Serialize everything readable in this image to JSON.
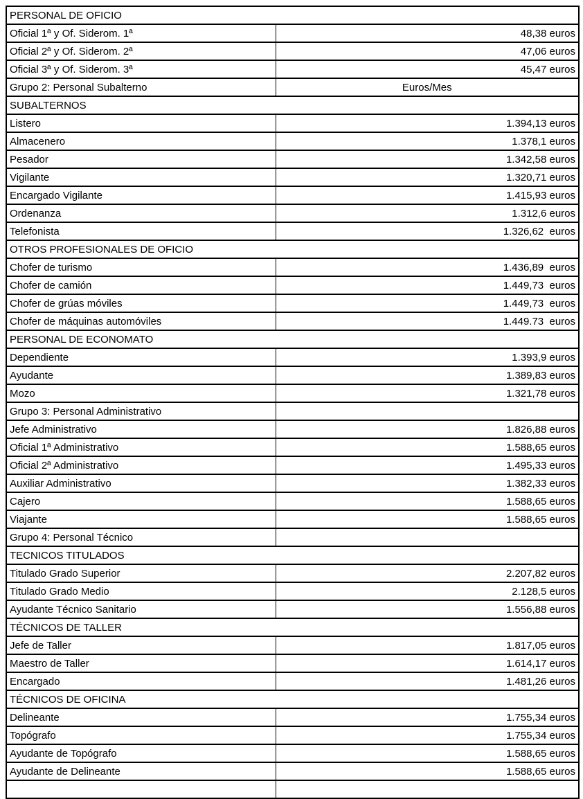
{
  "document": {
    "table": {
      "amount_column_header": "Euros/Mes",
      "currency_word": "euros",
      "rows": [
        {
          "type": "section",
          "label": "PERSONAL DE OFICIO"
        },
        {
          "type": "item",
          "label": "Oficial 1ª y Of. Siderom. 1ª",
          "value": "48,38 euros"
        },
        {
          "type": "item",
          "label": "Oficial 2ª y Of. Siderom. 2ª",
          "value": "47,06 euros"
        },
        {
          "type": "item",
          "label": "Oficial 3ª y Of. Siderom. 3ª",
          "value": "45,47 euros"
        },
        {
          "type": "group",
          "label": "Grupo 2: Personal Subalterno",
          "value": "Euros/Mes"
        },
        {
          "type": "section",
          "label": "SUBALTERNOS"
        },
        {
          "type": "item",
          "label": "Listero",
          "value": "1.394,13 euros"
        },
        {
          "type": "item",
          "label": "Almacenero",
          "value": "1.378,1 euros"
        },
        {
          "type": "item",
          "label": "Pesador",
          "value": "1.342,58 euros"
        },
        {
          "type": "item",
          "label": "Vigilante",
          "value": "1.320,71 euros"
        },
        {
          "type": "item",
          "label": "Encargado Vigilante",
          "value": "1.415,93 euros"
        },
        {
          "type": "item",
          "label": "Ordenanza",
          "value": "1.312,6 euros"
        },
        {
          "type": "item",
          "label": "Telefonista",
          "value": "1.326,62  euros"
        },
        {
          "type": "section",
          "label": "OTROS PROFESIONALES DE OFICIO"
        },
        {
          "type": "item",
          "label": "Chofer de turismo",
          "value": "1.436,89  euros"
        },
        {
          "type": "item",
          "label": "Chofer de camión",
          "value": "1.449,73  euros"
        },
        {
          "type": "item",
          "label": "Chofer de grúas móviles",
          "value": "1.449,73  euros"
        },
        {
          "type": "item",
          "label": "Chofer de máquinas automóviles",
          "value": "1.449.73  euros"
        },
        {
          "type": "section",
          "label": "PERSONAL DE ECONOMATO"
        },
        {
          "type": "item",
          "label": "Dependiente",
          "value": "1.393,9 euros"
        },
        {
          "type": "item",
          "label": "Ayudante",
          "value": "1.389,83 euros"
        },
        {
          "type": "item",
          "label": "Mozo",
          "value": "1.321,78 euros"
        },
        {
          "type": "group",
          "label": "Grupo 3: Personal Administrativo",
          "value": ""
        },
        {
          "type": "item",
          "label": "Jefe Administrativo",
          "value": "1.826,88 euros"
        },
        {
          "type": "item",
          "label": "Oficial 1ª Administrativo",
          "value": "1.588,65 euros"
        },
        {
          "type": "item",
          "label": "Oficial 2ª Administrativo",
          "value": "1.495,33 euros"
        },
        {
          "type": "item",
          "label": "Auxiliar Administrativo",
          "value": "1.382,33 euros"
        },
        {
          "type": "item",
          "label": "Cajero",
          "value": "1.588,65 euros"
        },
        {
          "type": "item",
          "label": "Viajante",
          "value": "1.588,65 euros"
        },
        {
          "type": "group",
          "label": "Grupo 4: Personal Técnico",
          "value": ""
        },
        {
          "type": "section",
          "label": "TECNICOS TITULADOS"
        },
        {
          "type": "item",
          "label": "Titulado Grado Superior",
          "value": "2.207,82 euros"
        },
        {
          "type": "item",
          "label": "Titulado Grado Medio",
          "value": "2.128,5 euros"
        },
        {
          "type": "item",
          "label": "Ayudante Técnico Sanitario",
          "value": "1.556,88 euros"
        },
        {
          "type": "section",
          "label": "TÉCNICOS DE TALLER"
        },
        {
          "type": "item",
          "label": "Jefe de Taller",
          "value": "1.817,05 euros"
        },
        {
          "type": "item",
          "label": "Maestro de Taller",
          "value": "1.614,17 euros"
        },
        {
          "type": "item",
          "label": "Encargado",
          "value": "1.481,26 euros"
        },
        {
          "type": "section",
          "label": "TÉCNICOS DE OFICINA"
        },
        {
          "type": "item",
          "label": "Delineante",
          "value": "1.755,34 euros"
        },
        {
          "type": "item",
          "label": "Topógrafo",
          "value": "1.755,34 euros"
        },
        {
          "type": "item",
          "label": "Ayudante de Topógrafo",
          "value": "1.588,65 euros"
        },
        {
          "type": "item",
          "label": "Ayudante de Delineante",
          "value": "1.588,65 euros"
        },
        {
          "type": "item",
          "label": "",
          "value": ""
        }
      ]
    }
  }
}
